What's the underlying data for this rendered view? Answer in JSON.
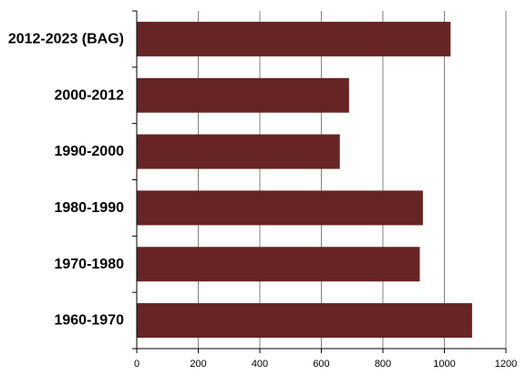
{
  "chart_data": {
    "type": "bar",
    "orientation": "horizontal",
    "categories": [
      "2012-2023 (BAG)",
      "2000-2012",
      "1990-2000",
      "1980-1990",
      "1970-1980",
      "1960-1970"
    ],
    "values": [
      1020,
      690,
      660,
      930,
      920,
      1090
    ],
    "xlim": [
      0,
      1200
    ],
    "xticks": [
      0,
      200,
      400,
      600,
      800,
      1000,
      1200
    ],
    "title": "",
    "xlabel": "",
    "ylabel": "",
    "grid": "vertical",
    "legend": "none",
    "bar_color": "#662524",
    "grid_color": "#808080",
    "axis_color": "#000000"
  }
}
